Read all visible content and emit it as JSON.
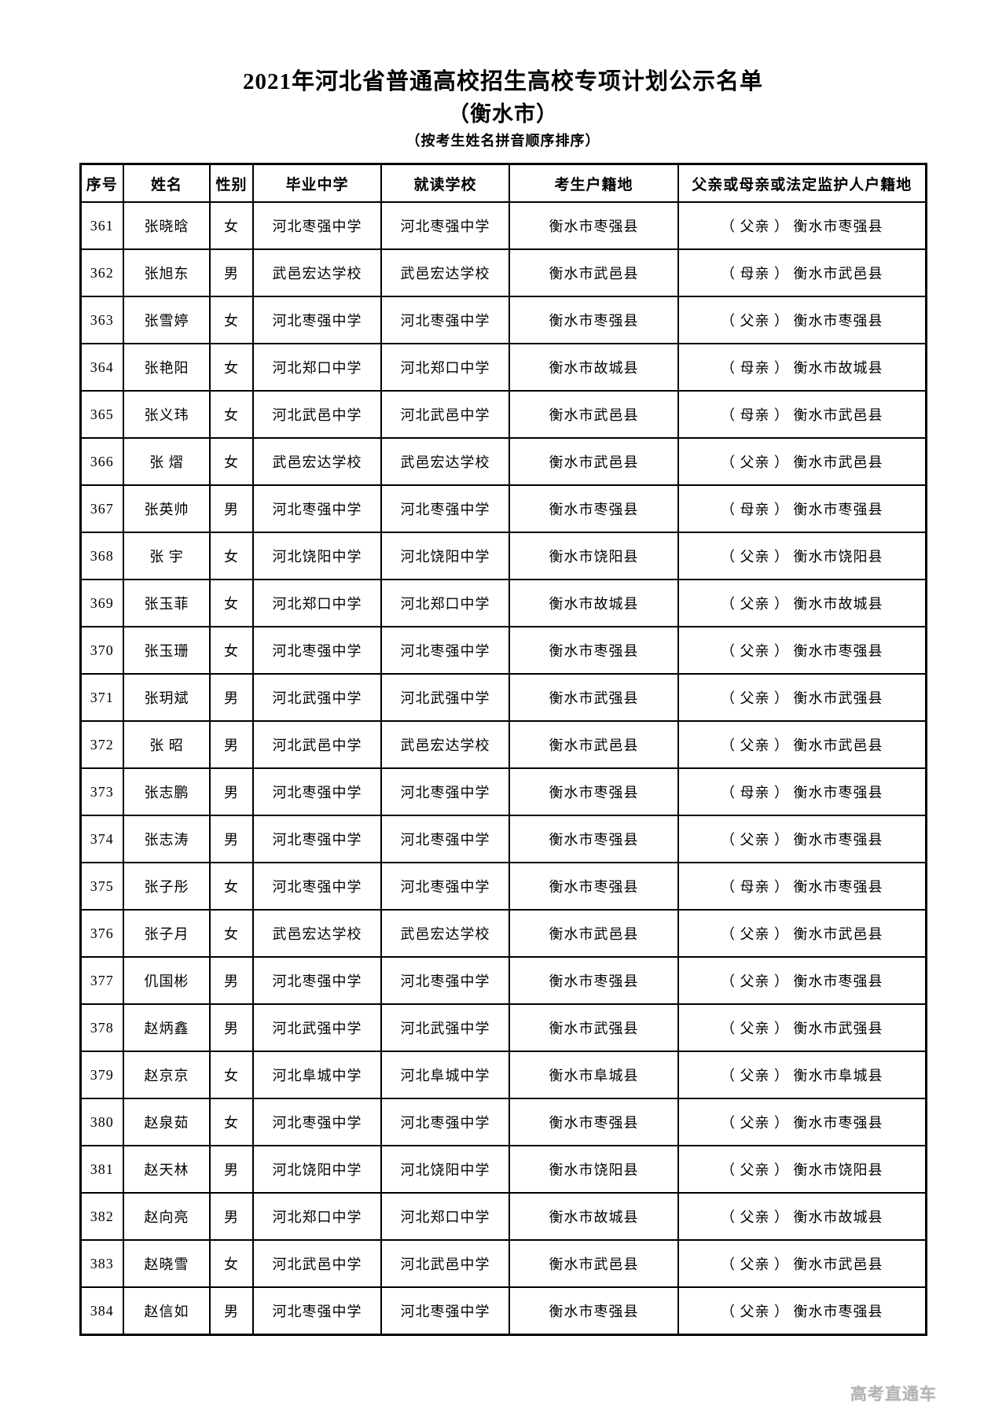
{
  "page": {
    "title": "2021年河北省普通高校招生高校专项计划公示名单",
    "subtitle": "（衡水市）",
    "sort_note": "（按考生姓名拼音顺序排序）",
    "watermark": "高考直通车"
  },
  "colors": {
    "text": "#000000",
    "table_border": "#000000",
    "background": "#ffffff",
    "watermark": "#b3b3b3"
  },
  "table": {
    "headers": [
      "序号",
      "姓名",
      "性别",
      "毕业中学",
      "就读学校",
      "考生户籍地",
      "父亲或母亲或法定监护人户籍地"
    ],
    "rows": [
      [
        "361",
        "张晓晗",
        "女",
        "河北枣强中学",
        "河北枣强中学",
        "衡水市枣强县",
        "（ 父亲 ） 衡水市枣强县"
      ],
      [
        "362",
        "张旭东",
        "男",
        "武邑宏达学校",
        "武邑宏达学校",
        "衡水市武邑县",
        "（ 母亲 ） 衡水市武邑县"
      ],
      [
        "363",
        "张雪婷",
        "女",
        "河北枣强中学",
        "河北枣强中学",
        "衡水市枣强县",
        "（ 父亲 ） 衡水市枣强县"
      ],
      [
        "364",
        "张艳阳",
        "女",
        "河北郑口中学",
        "河北郑口中学",
        "衡水市故城县",
        "（ 母亲 ） 衡水市故城县"
      ],
      [
        "365",
        "张义玮",
        "女",
        "河北武邑中学",
        "河北武邑中学",
        "衡水市武邑县",
        "（ 母亲 ） 衡水市武邑县"
      ],
      [
        "366",
        "张 熠",
        "女",
        "武邑宏达学校",
        "武邑宏达学校",
        "衡水市武邑县",
        "（ 父亲 ） 衡水市武邑县"
      ],
      [
        "367",
        "张英帅",
        "男",
        "河北枣强中学",
        "河北枣强中学",
        "衡水市枣强县",
        "（ 母亲 ） 衡水市枣强县"
      ],
      [
        "368",
        "张 宇",
        "女",
        "河北饶阳中学",
        "河北饶阳中学",
        "衡水市饶阳县",
        "（ 父亲 ） 衡水市饶阳县"
      ],
      [
        "369",
        "张玉菲",
        "女",
        "河北郑口中学",
        "河北郑口中学",
        "衡水市故城县",
        "（ 父亲 ） 衡水市故城县"
      ],
      [
        "370",
        "张玉珊",
        "女",
        "河北枣强中学",
        "河北枣强中学",
        "衡水市枣强县",
        "（ 父亲 ） 衡水市枣强县"
      ],
      [
        "371",
        "张玥斌",
        "男",
        "河北武强中学",
        "河北武强中学",
        "衡水市武强县",
        "（ 父亲 ） 衡水市武强县"
      ],
      [
        "372",
        "张 昭",
        "男",
        "河北武邑中学",
        "武邑宏达学校",
        "衡水市武邑县",
        "（ 父亲 ） 衡水市武邑县"
      ],
      [
        "373",
        "张志鹏",
        "男",
        "河北枣强中学",
        "河北枣强中学",
        "衡水市枣强县",
        "（ 母亲 ） 衡水市枣强县"
      ],
      [
        "374",
        "张志涛",
        "男",
        "河北枣强中学",
        "河北枣强中学",
        "衡水市枣强县",
        "（ 父亲 ） 衡水市枣强县"
      ],
      [
        "375",
        "张子彤",
        "女",
        "河北枣强中学",
        "河北枣强中学",
        "衡水市枣强县",
        "（ 母亲 ） 衡水市枣强县"
      ],
      [
        "376",
        "张子月",
        "女",
        "武邑宏达学校",
        "武邑宏达学校",
        "衡水市武邑县",
        "（ 父亲 ） 衡水市武邑县"
      ],
      [
        "377",
        "仉国彬",
        "男",
        "河北枣强中学",
        "河北枣强中学",
        "衡水市枣强县",
        "（ 父亲 ） 衡水市枣强县"
      ],
      [
        "378",
        "赵炳鑫",
        "男",
        "河北武强中学",
        "河北武强中学",
        "衡水市武强县",
        "（ 父亲 ） 衡水市武强县"
      ],
      [
        "379",
        "赵京京",
        "女",
        "河北阜城中学",
        "河北阜城中学",
        "衡水市阜城县",
        "（ 父亲 ） 衡水市阜城县"
      ],
      [
        "380",
        "赵泉茹",
        "女",
        "河北枣强中学",
        "河北枣强中学",
        "衡水市枣强县",
        "（ 父亲 ） 衡水市枣强县"
      ],
      [
        "381",
        "赵天林",
        "男",
        "河北饶阳中学",
        "河北饶阳中学",
        "衡水市饶阳县",
        "（ 父亲 ） 衡水市饶阳县"
      ],
      [
        "382",
        "赵向亮",
        "男",
        "河北郑口中学",
        "河北郑口中学",
        "衡水市故城县",
        "（ 父亲 ） 衡水市故城县"
      ],
      [
        "383",
        "赵晓雪",
        "女",
        "河北武邑中学",
        "河北武邑中学",
        "衡水市武邑县",
        "（ 父亲 ） 衡水市武邑县"
      ],
      [
        "384",
        "赵信如",
        "男",
        "河北枣强中学",
        "河北枣强中学",
        "衡水市枣强县",
        "（ 父亲 ） 衡水市枣强县"
      ]
    ]
  }
}
